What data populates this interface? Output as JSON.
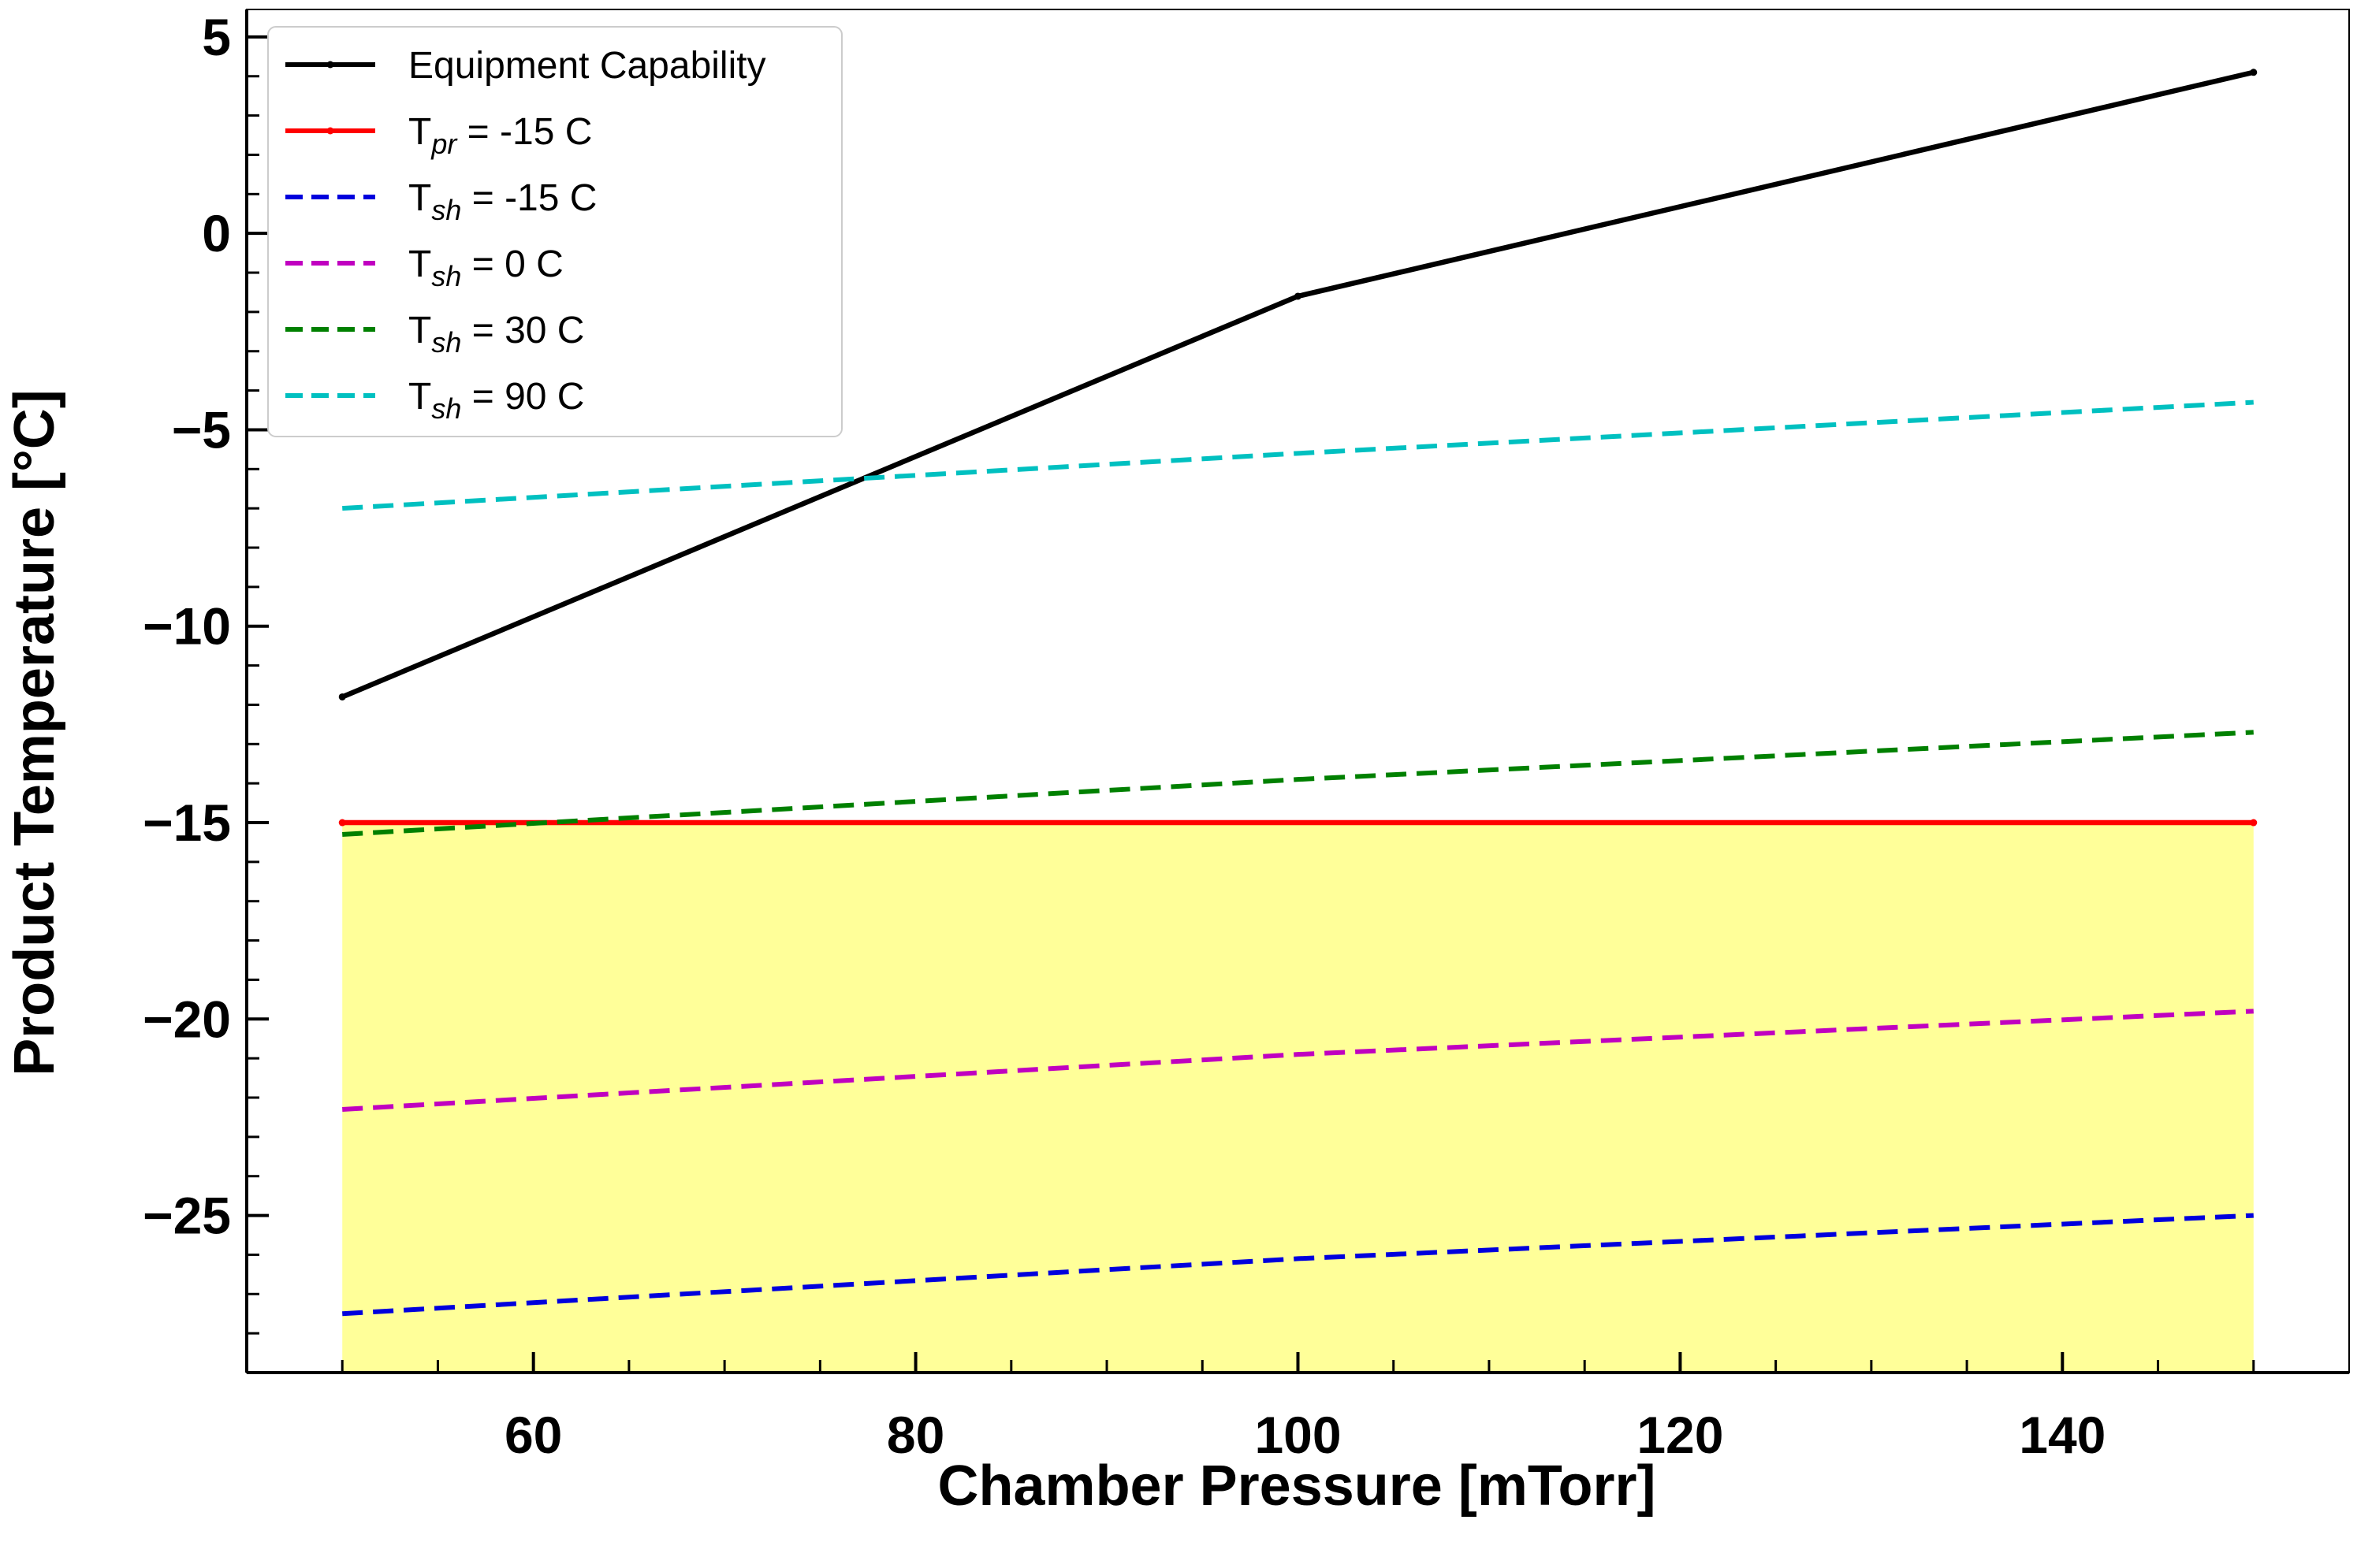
{
  "chart_data": {
    "type": "line",
    "xlabel": "Chamber Pressure [mTorr]",
    "ylabel": "Product Temperature [°C]",
    "xlim": [
      45,
      155
    ],
    "ylim": [
      -29,
      5.7
    ],
    "xticks": [
      60,
      80,
      100,
      120,
      140
    ],
    "xtick_labels": [
      "60",
      "80",
      "100",
      "120",
      "140"
    ],
    "yticks": [
      5,
      0,
      -5,
      -10,
      -15,
      -20,
      -25
    ],
    "ytick_labels": [
      "5",
      "0",
      "−5",
      "−10",
      "−15",
      "−20",
      "−25"
    ],
    "legend_position": "top-left",
    "shaded_region": {
      "x": [
        50,
        150
      ],
      "y_top": -15,
      "color": "#ffff99"
    },
    "series": [
      {
        "name": "Equipment Capability",
        "legend_main": "Equipment Capability",
        "legend_sub": "",
        "legend_rest": "",
        "color": "#000000",
        "style": "solid",
        "markers": true,
        "x": [
          50,
          100,
          150
        ],
        "y": [
          -11.8,
          -1.6,
          4.1
        ]
      },
      {
        "name": "Tpr = -15 C",
        "legend_main": "T",
        "legend_sub": "pr",
        "legend_rest": " = -15 C",
        "color": "#ff0000",
        "style": "solid",
        "markers": true,
        "x": [
          50,
          150
        ],
        "y": [
          -15.0,
          -15.0
        ]
      },
      {
        "name": "Tsh = -15 C",
        "legend_main": "T",
        "legend_sub": "sh",
        "legend_rest": " = -15 C",
        "color": "#0000dd",
        "style": "dashed",
        "markers": false,
        "x": [
          50,
          100,
          150
        ],
        "y": [
          -27.5,
          -26.1,
          -25.0
        ]
      },
      {
        "name": "Tsh = 0 C",
        "legend_main": "T",
        "legend_sub": "sh",
        "legend_rest": " = 0 C",
        "color": "#c000c0",
        "style": "dashed",
        "markers": false,
        "x": [
          50,
          100,
          150
        ],
        "y": [
          -22.3,
          -20.9,
          -19.8
        ]
      },
      {
        "name": "Tsh = 30 C",
        "legend_main": "T",
        "legend_sub": "sh",
        "legend_rest": " = 30 C",
        "color": "#008000",
        "style": "dashed",
        "markers": false,
        "x": [
          50,
          100,
          150
        ],
        "y": [
          -15.3,
          -13.9,
          -12.7
        ]
      },
      {
        "name": "Tsh = 90 C",
        "legend_main": "T",
        "legend_sub": "sh",
        "legend_rest": " = 90 C",
        "color": "#00c0c0",
        "style": "dashed",
        "markers": false,
        "x": [
          50,
          100,
          150
        ],
        "y": [
          -7.0,
          -5.6,
          -4.3
        ]
      }
    ]
  }
}
